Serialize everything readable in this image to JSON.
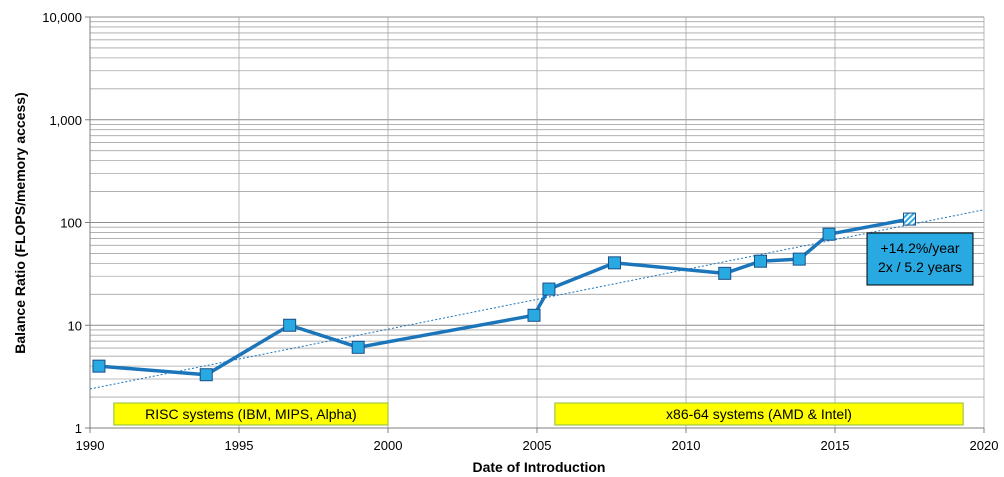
{
  "chart_data": {
    "type": "line",
    "xlabel": "Date of Introduction",
    "ylabel": "Balance Ratio (FLOPS/memory access)",
    "xlim": [
      1990,
      2020
    ],
    "ylim": [
      1,
      10000
    ],
    "y_scale": "log",
    "grid": true,
    "x_ticks": [
      "1990",
      "1995",
      "2000",
      "2005",
      "2010",
      "2015",
      "2020"
    ],
    "y_ticks": [
      {
        "value": 1,
        "label": "1"
      },
      {
        "value": 10,
        "label": "10"
      },
      {
        "value": 100,
        "label": "100"
      },
      {
        "value": 1000,
        "label": "1,000"
      },
      {
        "value": 10000,
        "label": "10,000"
      }
    ],
    "series": [
      {
        "x": [
          1990.3,
          1993.9,
          1996.7,
          1999.0,
          2004.9,
          2005.4,
          2007.6,
          2011.3,
          2012.5,
          2013.8,
          2014.8,
          2017.5
        ],
        "y": [
          4.0,
          3.3,
          10.0,
          6.1,
          12.5,
          22.5,
          40.5,
          32.0,
          42.0,
          44.0,
          77.0,
          108.0
        ],
        "color": "#1b75bb",
        "marker_color": "#29a9e1",
        "last_marker": "hatched"
      }
    ],
    "trendline": {
      "x": [
        1990,
        2020
      ],
      "y": [
        2.4,
        133
      ],
      "color": "#1b75bb",
      "style": "dotted"
    },
    "annotations": [
      {
        "lines": [
          "+14.2%/year",
          "2x / 5.2 years"
        ],
        "fill": "#29a9e1"
      }
    ],
    "bands": [
      {
        "label": "RISC systems (IBM, MIPS, Alpha)",
        "x_start": 1990.8,
        "x_end": 2000.0,
        "fill": "#ffff00"
      },
      {
        "label": "x86-64 systems (AMD & Intel)",
        "x_start": 2005.6,
        "x_end": 2019.3,
        "fill": "#ffff00"
      }
    ]
  }
}
